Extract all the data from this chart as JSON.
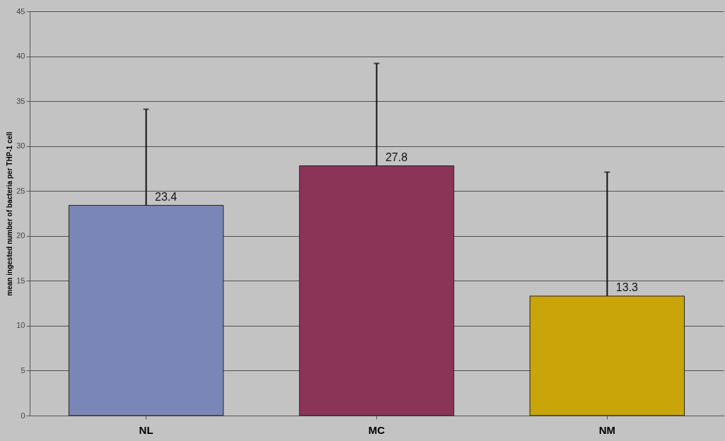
{
  "chart_data": {
    "type": "bar",
    "ylabel": "mean ingested number of bacteria per THP-1 cell",
    "categories": [
      "NL",
      "MC",
      "NM"
    ],
    "values": [
      23.4,
      27.8,
      13.3
    ],
    "colors": [
      "#7b86b8",
      "#8c3358",
      "#c9a50a"
    ],
    "errors": [
      [
        23.4,
        34.1
      ],
      [
        27.8,
        39.2
      ],
      [
        13.3,
        27.1
      ]
    ],
    "ylim": [
      0,
      45
    ],
    "yticks": [
      0,
      5,
      10,
      15,
      20,
      25,
      30,
      35,
      40,
      45
    ],
    "grid": "y",
    "data_labels": true
  }
}
